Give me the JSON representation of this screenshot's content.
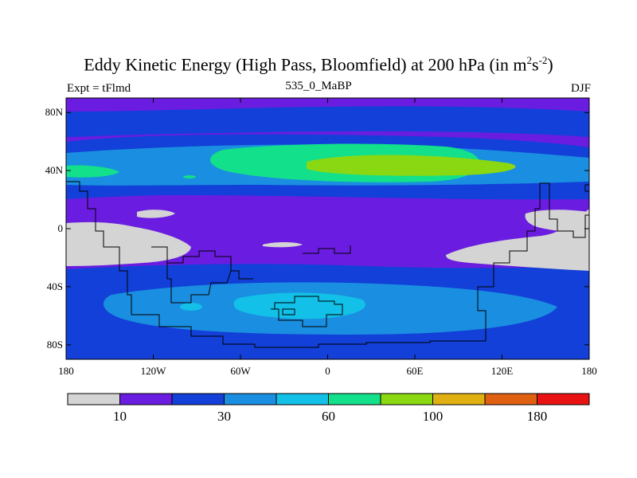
{
  "title": {
    "main": "Eddy Kinetic Energy (High Pass, Bloomfield) at 200 hPa (in m",
    "sup1": "2",
    "mid": "s",
    "sup2": "-2",
    "end": ")"
  },
  "left_label": "Expt = tFlmd",
  "center_label": "535_0_MaBP",
  "right_label": "DJF",
  "axes": {
    "lat_ticks": [
      {
        "label": "80N",
        "lat": 80
      },
      {
        "label": "40N",
        "lat": 40
      },
      {
        "label": "0",
        "lat": 0
      },
      {
        "label": "40S",
        "lat": -40
      },
      {
        "label": "80S",
        "lat": -80
      }
    ],
    "lon_ticks": [
      {
        "label": "180",
        "lon": -180
      },
      {
        "label": "120W",
        "lon": -120
      },
      {
        "label": "60W",
        "lon": -60
      },
      {
        "label": "0",
        "lon": 0
      },
      {
        "label": "60E",
        "lon": 60
      },
      {
        "label": "120E",
        "lon": 120
      },
      {
        "label": "180",
        "lon": 180
      }
    ]
  },
  "colorbar": {
    "colors": [
      "#d4d4d4",
      "#6a1de0",
      "#1240d8",
      "#1a8ee0",
      "#12c0e8",
      "#12e08a",
      "#8ad812",
      "#e0b012",
      "#e06012",
      "#e81212"
    ],
    "labels": [
      {
        "text": "10",
        "boundary": 1
      },
      {
        "text": "30",
        "boundary": 3
      },
      {
        "text": "60",
        "boundary": 5
      },
      {
        "text": "100",
        "boundary": 7
      },
      {
        "text": "180",
        "boundary": 9
      }
    ]
  },
  "legend_colors": {
    "grey": "#d4d4d4",
    "violet": "#6a1de0",
    "blue": "#1240d8",
    "mid_blue": "#1a8ee0",
    "cyan": "#12c0e8",
    "green": "#12e08a",
    "lime": "#8ad812"
  }
}
